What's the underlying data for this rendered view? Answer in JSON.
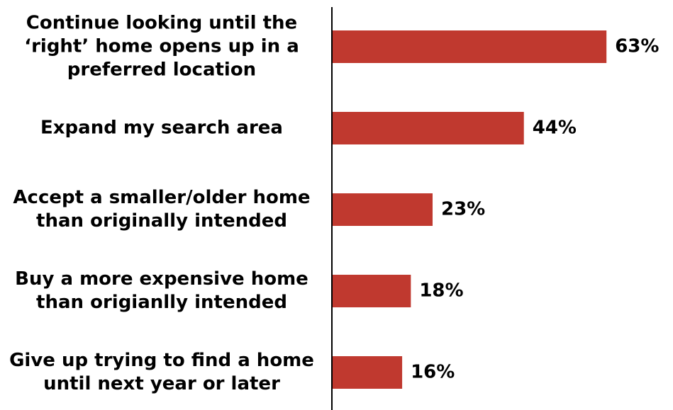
{
  "chart_data": {
    "type": "bar",
    "orientation": "horizontal",
    "categories": [
      "Continue looking until the ‘right’ home opens up in a preferred location",
      "Expand my search area",
      "Accept a smaller/older home than originally intended",
      "Buy a more expensive home than origianlly intended",
      "Give up trying to find a home until next year or later"
    ],
    "values": [
      63,
      44,
      23,
      18,
      16
    ],
    "value_labels": [
      "63%",
      "44%",
      "23%",
      "18%",
      "16%"
    ],
    "color": "#c0392f"
  }
}
